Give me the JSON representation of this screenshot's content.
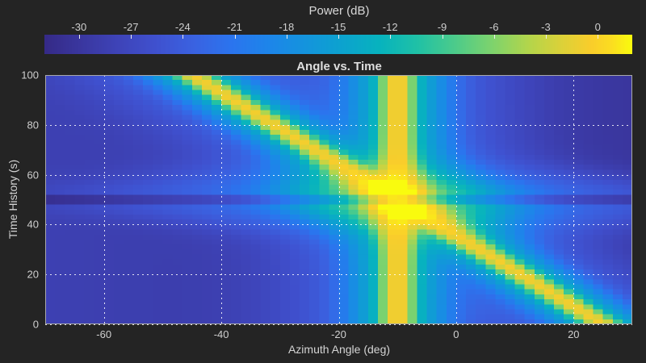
{
  "figure": {
    "background": "#242424",
    "text_color": "#d4d4d4"
  },
  "colorbar": {
    "title": "Power (dB)",
    "min": -32,
    "max": 2,
    "ticks": [
      -30,
      -27,
      -24,
      -21,
      -18,
      -15,
      -12,
      -9,
      -6,
      -3,
      0
    ],
    "orientation": "horizontal-top"
  },
  "chart_data": {
    "type": "heatmap",
    "title": "Angle vs. Time",
    "xlabel": "Azimuth Angle (deg)",
    "ylabel": "Time History (s)",
    "x_range": [
      -70,
      30
    ],
    "y_range": [
      0,
      100
    ],
    "x_ticks": [
      -60,
      -40,
      -20,
      0,
      20
    ],
    "y_ticks": [
      0,
      20,
      40,
      60,
      80,
      100
    ],
    "grid": {
      "cols": 60,
      "rows": 50,
      "grid_on": true,
      "grid_style": "dotted-white"
    },
    "value_units": "dB",
    "colormap_name": "parula",
    "colormap": [
      [
        0.0,
        "#352a87"
      ],
      [
        0.063,
        "#3a37a0"
      ],
      [
        0.127,
        "#3e44b9"
      ],
      [
        0.19,
        "#3f51cf"
      ],
      [
        0.254,
        "#3a62e1"
      ],
      [
        0.317,
        "#2b74ee"
      ],
      [
        0.381,
        "#1d85ea"
      ],
      [
        0.444,
        "#1494dd"
      ],
      [
        0.508,
        "#0ca3ce"
      ],
      [
        0.571,
        "#07b3be"
      ],
      [
        0.635,
        "#20c1a6"
      ],
      [
        0.698,
        "#4ccb8b"
      ],
      [
        0.762,
        "#7ed36d"
      ],
      [
        0.825,
        "#b4d54b"
      ],
      [
        0.88,
        "#dcd139"
      ],
      [
        0.93,
        "#f9cd2b"
      ],
      [
        0.965,
        "#fbdd21"
      ],
      [
        1.0,
        "#f9fb0e"
      ]
    ],
    "model": {
      "description": "Power in dB over azimuth angle (x) and time history (y); two beams: one stationary at -10 deg, one sweeping from +25 deg at t=0 to -45 deg at t=100, crossing near t=50 where the response broadens; a 4-s attenuated (blanked) horizontal band sits at t=50.",
      "background_db": -28.3,
      "background_tilt_db_left_to_right": -1.8,
      "targets": [
        {
          "name": "stationary-interferer",
          "motion": "static",
          "angle_deg": -10,
          "peak_db": -0.5,
          "sigma_deg": 1.4,
          "skirts": [
            {
              "db": -12.5,
              "sigma_deg": 4.2
            },
            {
              "db": -24,
              "sigma_deg": 12
            }
          ]
        },
        {
          "name": "moving-target",
          "motion": "linear",
          "angle_at_t0_deg": 25,
          "rate_deg_per_s": -0.7,
          "peak_db": -1,
          "sigma_deg": 1.5,
          "skirts": [
            {
              "db": -12.5,
              "sigma_deg": 4.2
            },
            {
              "db": -24,
              "sigma_deg": 12
            }
          ]
        }
      ],
      "crossing": {
        "time_s": 50,
        "angle_deg": -10,
        "beam_widen": 1.2,
        "widen_time_sigma_s": 8,
        "boost_db": 3,
        "boost_time_sigma_s": 7,
        "boost_angle_sigma_deg": 10
      },
      "blank_band": {
        "time_s": 50,
        "atten_db": 4.5,
        "half_width_s": 1.8
      }
    }
  }
}
